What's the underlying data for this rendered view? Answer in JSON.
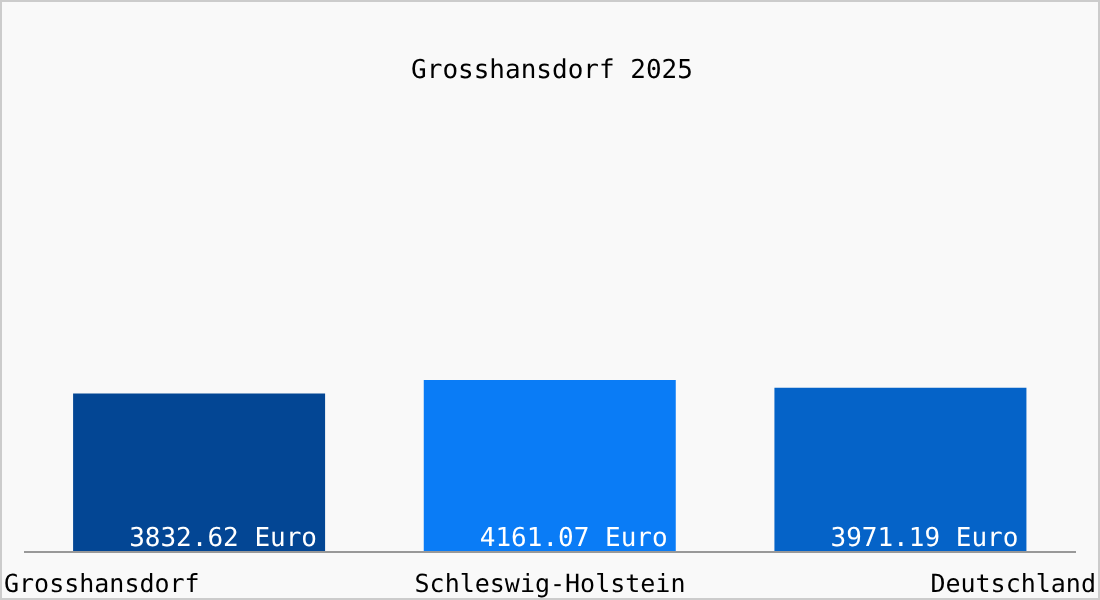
{
  "chart_data": {
    "type": "bar",
    "title": "Grosshansdorf 2025",
    "categories": [
      "Grosshansdorf",
      "Schleswig-Holstein",
      "Deutschland"
    ],
    "values": [
      3832.62,
      4161.07,
      3971.19
    ],
    "colors": [
      "#034694",
      "#0a7cf6",
      "#0563c8"
    ],
    "value_labels": [
      "3832.62 Euro",
      "4161.07 Euro",
      "3971.19 Euro"
    ],
    "tick_labels": "x",
    "grid": false,
    "legend": false
  }
}
